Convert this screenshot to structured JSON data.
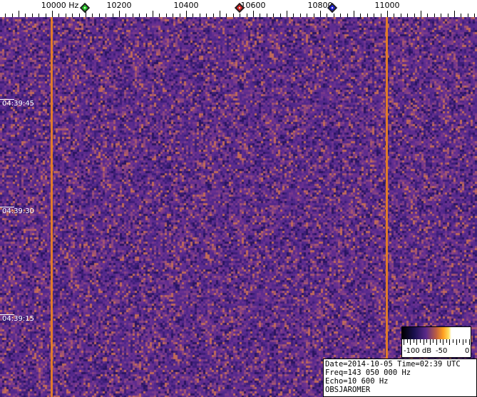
{
  "frequency_axis": {
    "labels": [
      {
        "text": "10000 Hz",
        "hz": 10000
      },
      {
        "text": "10200",
        "hz": 10200
      },
      {
        "text": "10400",
        "hz": 10400
      },
      {
        "text": "10600",
        "hz": 10600
      },
      {
        "text": "10800",
        "hz": 10800
      },
      {
        "text": "11000",
        "hz": 11000
      }
    ],
    "markers": [
      {
        "name": "green-marker",
        "hz": 10098,
        "color": "#22cc22"
      },
      {
        "name": "red-marker",
        "hz": 10560,
        "color": "#dd2222"
      },
      {
        "name": "blue-marker",
        "hz": 10836,
        "color": "#1a1acc"
      }
    ]
  },
  "time_axis": {
    "labels": [
      "04:39:45",
      "04:39:30",
      "04:39:15"
    ]
  },
  "signals_hz": [
    10000,
    11000
  ],
  "colorbar": {
    "labels": [
      "-100 dB",
      "-50",
      "0"
    ]
  },
  "info": {
    "line1": "Date=2014-10-05 Time=02:39 UTC",
    "line2": "Freq=143 050 000 Hz",
    "line3": "Echo=10 600 Hz",
    "line4": "OBSJAROMER"
  },
  "colors": {
    "background": "#5a2a8a",
    "signal": "#e07a2a"
  }
}
